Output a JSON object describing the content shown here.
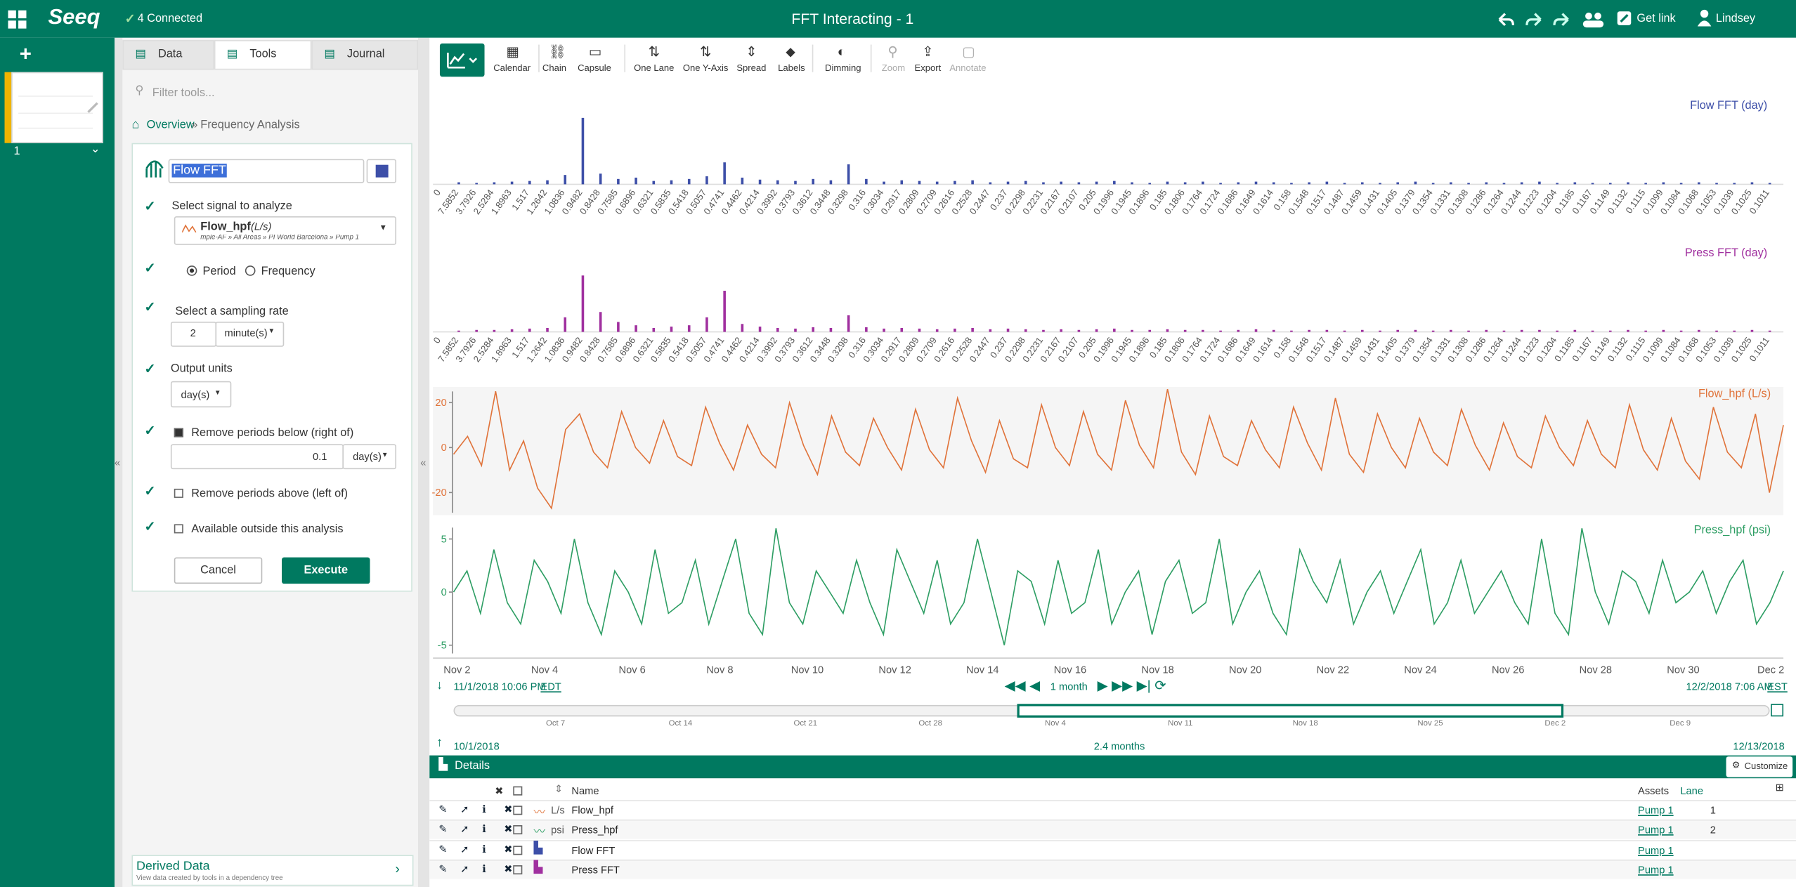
{
  "topbar": {
    "connected": "4 Connected",
    "title": "FFT Interacting - 1",
    "get_link": "Get link",
    "user": "Lindsey",
    "logo": "Seeq"
  },
  "worksheet": {
    "number": "1"
  },
  "tabs": [
    "Data",
    "Tools",
    "Journal"
  ],
  "filter_placeholder": "Filter tools...",
  "breadcrumb": {
    "overview": "Overview",
    "separator": "»",
    "current": "Frequency Analysis"
  },
  "form": {
    "name": "Flow FFT",
    "signal_label": "Select signal to analyze",
    "signal_name": "Flow_hpf",
    "signal_unit": "(L/s)",
    "signal_path": "mple-AF » All Areas » PI World Barcelona » Pump 1",
    "period": "Period",
    "frequency": "Frequency",
    "sampling_label": "Select a sampling rate",
    "sampling_value": "2",
    "sampling_unit": "minute(s)",
    "output_label": "Output units",
    "output_value": "day(s)",
    "remove_below": "Remove periods below (right of)",
    "below_value": "0.1",
    "below_unit": "day(s)",
    "remove_above": "Remove periods above (left of)",
    "available": "Available outside this analysis",
    "cancel": "Cancel",
    "execute": "Execute"
  },
  "derived": {
    "title": "Derived Data",
    "subtitle": "View data created by tools in a dependency tree"
  },
  "toolbar": [
    "Calendar",
    "Chain",
    "Capsule",
    "One Lane",
    "One Y-Axis",
    "Spread",
    "Labels",
    "Dimming",
    "Zoom",
    "Export",
    "Annotate"
  ],
  "fft_axis": {
    "labels": [
      "0",
      "7.5852",
      "3.7926",
      "2.5284",
      "1.8963",
      "1.517",
      "1.2642",
      "1.0836",
      "0.9482",
      "0.8428",
      "0.7585",
      "0.6896",
      "0.6321",
      "0.5835",
      "0.5418",
      "0.5057",
      "0.4741",
      "0.4462",
      "0.4214",
      "0.3992",
      "0.3793",
      "0.3612",
      "0.3448",
      "0.3298",
      "0.316",
      "0.3034",
      "0.2917",
      "0.2809",
      "0.2709",
      "0.2616",
      "0.2528",
      "0.2447",
      "0.237",
      "0.2298",
      "0.2231",
      "0.2167",
      "0.2107",
      "0.205",
      "0.1996",
      "0.1945",
      "0.1896",
      "0.185",
      "0.1806",
      "0.1764",
      "0.1724",
      "0.1686",
      "0.1649",
      "0.1614",
      "0.158",
      "0.1548",
      "0.1517",
      "0.1487",
      "0.1459",
      "0.1431",
      "0.1405",
      "0.1379",
      "0.1354",
      "0.1331",
      "0.1308",
      "0.1286",
      "0.1264",
      "0.1244",
      "0.1223",
      "0.1204",
      "0.1185",
      "0.1167",
      "0.1149",
      "0.1132",
      "0.1115",
      "0.1099",
      "0.1084",
      "0.1068",
      "0.1053",
      "0.1039",
      "0.1025",
      "0.1011"
    ]
  },
  "fft_charts": [
    {
      "name": "Flow FFT (day)",
      "color": "#3d4fa8",
      "values": [
        0,
        3,
        2,
        3,
        4,
        5,
        6,
        14,
        100,
        16,
        8,
        10,
        5,
        6,
        8,
        12,
        33,
        10,
        7,
        6,
        5,
        8,
        6,
        30,
        8,
        4,
        6,
        5,
        4,
        5,
        6,
        3,
        4,
        5,
        3,
        4,
        3,
        4,
        5,
        3,
        2,
        4,
        3,
        4,
        2,
        3,
        4,
        3,
        2,
        3,
        4,
        2,
        3,
        2,
        3,
        4,
        2,
        3,
        2,
        3,
        2,
        3,
        4,
        2,
        3,
        2,
        2,
        3,
        2,
        3,
        2,
        3,
        2,
        2,
        3,
        2
      ]
    },
    {
      "name": "Press FFT (day)",
      "color": "#a0309f",
      "values": [
        0,
        2,
        3,
        3,
        4,
        5,
        6,
        22,
        85,
        30,
        15,
        10,
        6,
        8,
        10,
        22,
        62,
        12,
        8,
        6,
        5,
        7,
        6,
        25,
        7,
        5,
        6,
        5,
        4,
        5,
        6,
        4,
        5,
        4,
        3,
        4,
        3,
        4,
        5,
        3,
        3,
        4,
        3,
        3,
        2,
        3,
        4,
        3,
        2,
        3,
        3,
        2,
        3,
        2,
        3,
        3,
        2,
        3,
        2,
        3,
        2,
        3,
        3,
        2,
        3,
        2,
        2,
        3,
        2,
        3,
        2,
        3,
        2,
        2,
        3,
        2
      ]
    }
  ],
  "trends": [
    {
      "name": "Flow_hpf (L/s)",
      "color": "#e0733a",
      "ylim": [
        -30,
        27
      ],
      "yticks": [
        20,
        0,
        -20
      ],
      "values": [
        -3,
        5,
        -8,
        25,
        -10,
        3,
        -18,
        -27,
        8,
        15,
        -2,
        -9,
        16,
        0,
        -7,
        12,
        -4,
        -8,
        18,
        2,
        -10,
        10,
        -3,
        -9,
        20,
        1,
        -12,
        14,
        -2,
        -8,
        13,
        0,
        -10,
        17,
        -1,
        -9,
        22,
        3,
        -11,
        12,
        -5,
        -9,
        19,
        0,
        -8,
        16,
        -3,
        -10,
        21,
        1,
        -9,
        26,
        -2,
        -12,
        14,
        -4,
        -8,
        12,
        -1,
        -9,
        18,
        2,
        -10,
        22,
        -3,
        -11,
        15,
        0,
        -9,
        13,
        -2,
        -8,
        17,
        1,
        -10,
        11,
        -4,
        -9,
        14,
        0,
        -8,
        12,
        -3,
        -9,
        19,
        -1,
        -10,
        13,
        -6,
        -14,
        18,
        -2,
        -9,
        15,
        -20,
        10
      ]
    },
    {
      "name": "Press_hpf (psi)",
      "color": "#2e9e64",
      "ylim": [
        -6,
        6.5
      ],
      "yticks": [
        5,
        0,
        -5
      ],
      "values": [
        0,
        2,
        -2,
        4,
        -1,
        -3,
        3,
        1,
        -2,
        5,
        -1,
        -4,
        2,
        0,
        -3,
        4,
        -2,
        -1,
        3,
        -3,
        1,
        5,
        -2,
        -4,
        6,
        -1,
        -3,
        2,
        0,
        -2,
        3,
        -1,
        -4,
        4,
        1,
        -2,
        3,
        -3,
        -1,
        5,
        0,
        -5,
        2,
        1,
        -3,
        3,
        -2,
        -1,
        4,
        -3,
        0,
        2,
        -4,
        1,
        3,
        -2,
        -1,
        5,
        -3,
        0,
        2,
        -2,
        -4,
        4,
        1,
        -1,
        3,
        -3,
        0,
        2,
        -2,
        1,
        4,
        -3,
        -1,
        3,
        -2,
        0,
        2,
        -1,
        -3,
        5,
        -2,
        -4,
        6,
        0,
        -3,
        2,
        1,
        -2,
        3,
        -1,
        0,
        2,
        -2,
        1,
        3,
        -3,
        -1,
        2
      ]
    }
  ],
  "time_axis": {
    "ticks": [
      "Nov 2",
      "Nov 4",
      "Nov 6",
      "Nov 8",
      "Nov 10",
      "Nov 12",
      "Nov 14",
      "Nov 16",
      "Nov 18",
      "Nov 20",
      "Nov 22",
      "Nov 24",
      "Nov 26",
      "Nov 28",
      "Nov 30",
      "Dec 2"
    ]
  },
  "range": {
    "start": "11/1/2018 10:06 PM",
    "start_tz": "EDT",
    "duration": "1 month",
    "end": "12/2/2018 7:06 AM",
    "end_tz": "EST"
  },
  "navigator": {
    "ticks": [
      "Oct 7",
      "Oct 14",
      "Oct 21",
      "Oct 28",
      "Nov 4",
      "Nov 11",
      "Nov 18",
      "Nov 25",
      "Dec 2",
      "Dec 9"
    ],
    "start": "10/1/2018",
    "span": "2.4 months",
    "end": "12/13/2018"
  },
  "details": {
    "title": "Details",
    "customize": "Customize",
    "columns": {
      "name": "Name",
      "assets": "Assets",
      "lane": "Lane"
    },
    "rows": [
      {
        "unit": "L/s",
        "name": "Flow_hpf",
        "asset": "Pump 1",
        "lane": "1"
      },
      {
        "unit": "psi",
        "name": "Press_hpf",
        "asset": "Pump 1",
        "lane": "2"
      },
      {
        "name": "Flow FFT",
        "asset": "Pump 1"
      },
      {
        "name": "Press FFT",
        "asset": "Pump 1"
      }
    ]
  }
}
